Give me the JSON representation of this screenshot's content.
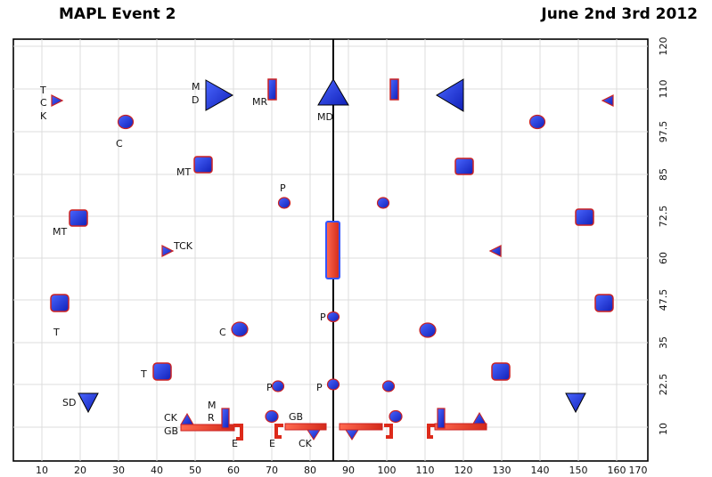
{
  "header": {
    "title_left": "MAPL Event 2",
    "title_right": "June 2nd 3rd 2012"
  },
  "field": {
    "x_ticks": [
      "10",
      "20",
      "30",
      "40",
      "50",
      "60",
      "70",
      "80",
      "90",
      "100",
      "110",
      "120",
      "130",
      "140",
      "150",
      "160",
      "170"
    ],
    "y_ticks": [
      "120",
      "110",
      "97.5",
      "85",
      "72.5",
      "60",
      "47.5",
      "35",
      "22.5",
      "10"
    ],
    "colors": {
      "bunker_blue": "#1f3be6",
      "bunker_red": "#e23a2a",
      "outline_red": "#cc2222",
      "grid": "#dcdcdc"
    }
  },
  "bunker_labels": {
    "tck_top": [
      "T",
      "C",
      "K"
    ],
    "c_top": "C",
    "md_left": [
      "M",
      "D"
    ],
    "mr_top": "MR",
    "md_center": "MD",
    "mt_upper": "MT",
    "p_upper": "P",
    "mt_left": "MT",
    "tck_mid": "TCK",
    "p_center": "P",
    "t_left": "T",
    "c_mid": "C",
    "t_lower": "T",
    "p_lower_left": "P",
    "p_lower_center": "P",
    "sd": "SD",
    "ck": "CK",
    "gb_left": "GB",
    "mr_bottom": [
      "M",
      "R"
    ],
    "e_left": "E",
    "e_mid": "E",
    "gb_mid": "GB",
    "ck_bottom": "CK"
  }
}
